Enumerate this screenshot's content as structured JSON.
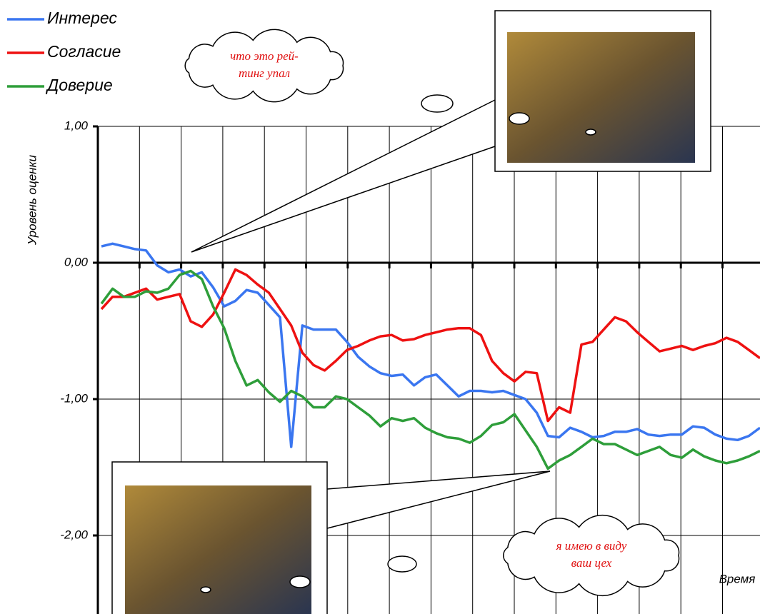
{
  "chart_data": {
    "type": "line",
    "y_label": "Уровень оценки",
    "x_label": "Время",
    "ylim": [
      -2.5,
      1.0
    ],
    "yticks": [
      {
        "value": -2,
        "label": "-2,00"
      },
      {
        "value": -1,
        "label": "-1,00"
      },
      {
        "value": 0,
        "label": "0,00"
      },
      {
        "value": 1,
        "label": "1,00"
      }
    ],
    "grid": true,
    "series": [
      {
        "name": "Интерес",
        "color": "#3a76f0",
        "values": [
          0.12,
          0.14,
          0.12,
          0.1,
          0.09,
          -0.02,
          -0.07,
          -0.05,
          -0.1,
          -0.07,
          -0.18,
          -0.32,
          -0.28,
          -0.2,
          -0.22,
          -0.31,
          -0.4,
          -1.35,
          -0.46,
          -0.49,
          -0.49,
          -0.49,
          -0.58,
          -0.69,
          -0.76,
          -0.81,
          -0.83,
          -0.82,
          -0.9,
          -0.84,
          -0.82,
          -0.9,
          -0.98,
          -0.94,
          -0.94,
          -0.95,
          -0.94,
          -0.97,
          -1.0,
          -1.1,
          -1.27,
          -1.28,
          -1.21,
          -1.24,
          -1.28,
          -1.27,
          -1.24,
          -1.24,
          -1.22,
          -1.26,
          -1.27,
          -1.26,
          -1.26,
          -1.2,
          -1.21,
          -1.26,
          -1.29,
          -1.3,
          -1.27,
          -1.21
        ]
      },
      {
        "name": "Согласие",
        "color": "#ee1111",
        "values": [
          -0.34,
          -0.25,
          -0.25,
          -0.22,
          -0.19,
          -0.27,
          -0.25,
          -0.23,
          -0.43,
          -0.47,
          -0.38,
          -0.22,
          -0.05,
          -0.09,
          -0.16,
          -0.22,
          -0.34,
          -0.46,
          -0.66,
          -0.75,
          -0.79,
          -0.72,
          -0.64,
          -0.61,
          -0.57,
          -0.54,
          -0.53,
          -0.57,
          -0.56,
          -0.53,
          -0.51,
          -0.49,
          -0.48,
          -0.48,
          -0.53,
          -0.72,
          -0.81,
          -0.87,
          -0.8,
          -0.81,
          -1.16,
          -1.06,
          -1.1,
          -0.6,
          -0.58,
          -0.49,
          -0.4,
          -0.43,
          -0.51,
          -0.58,
          -0.65,
          -0.63,
          -0.61,
          -0.64,
          -0.61,
          -0.59,
          -0.55,
          -0.58,
          -0.64,
          -0.7
        ]
      },
      {
        "name": "Доверие",
        "color": "#2e9e3a",
        "values": [
          -0.3,
          -0.19,
          -0.25,
          -0.25,
          -0.21,
          -0.22,
          -0.19,
          -0.09,
          -0.06,
          -0.12,
          -0.32,
          -0.48,
          -0.72,
          -0.9,
          -0.86,
          -0.95,
          -1.02,
          -0.94,
          -0.98,
          -1.06,
          -1.06,
          -0.98,
          -1.0,
          -1.06,
          -1.12,
          -1.2,
          -1.14,
          -1.16,
          -1.14,
          -1.21,
          -1.25,
          -1.28,
          -1.29,
          -1.32,
          -1.27,
          -1.19,
          -1.17,
          -1.11,
          -1.23,
          -1.35,
          -1.51,
          -1.45,
          -1.41,
          -1.35,
          -1.29,
          -1.33,
          -1.33,
          -1.37,
          -1.41,
          -1.38,
          -1.35,
          -1.41,
          -1.43,
          -1.37,
          -1.42,
          -1.45,
          -1.47,
          -1.45,
          -1.42,
          -1.38
        ]
      }
    ],
    "annotations": [
      {
        "lines": [
          "что это рей-",
          "тинг упал"
        ]
      },
      {
        "lines": [
          "я имею в виду",
          "ваш цех"
        ]
      }
    ]
  }
}
